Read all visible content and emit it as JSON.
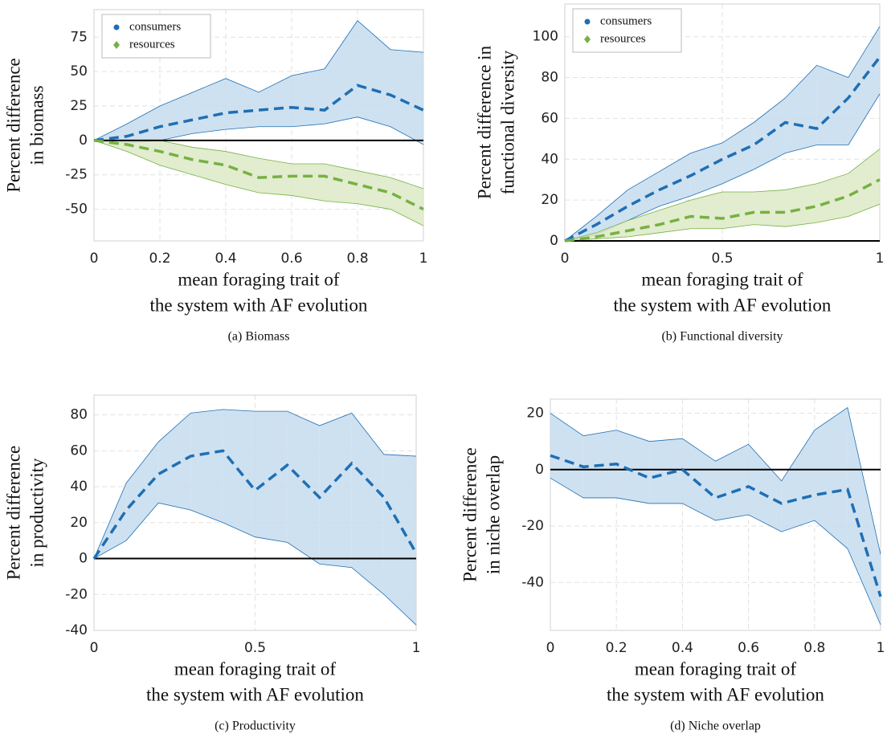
{
  "chart_data": [
    {
      "type": "line",
      "caption": "(a) Biomass",
      "ylabel": [
        "Percent difference",
        "in biomass"
      ],
      "xlabel": [
        "mean foraging trait of",
        "the system with AF evolution"
      ],
      "x": [
        0,
        0.1,
        0.2,
        0.3,
        0.4,
        0.5,
        0.6,
        0.7,
        0.8,
        0.9,
        1
      ],
      "xlim": [
        0,
        1
      ],
      "xticks": [
        0,
        0.2,
        0.4,
        0.6,
        0.8,
        1
      ],
      "ylim": [
        -73,
        95
      ],
      "yticks": [
        -50,
        -25,
        0,
        25,
        50,
        75
      ],
      "grid": true,
      "hline": 0,
      "legend": "upper left",
      "series": [
        {
          "name": "consumers",
          "color": "#1f6fb4",
          "fill": "#c5dcef",
          "marker": "circle",
          "values": [
            0,
            3,
            10,
            15,
            20,
            22,
            24,
            22,
            40,
            33,
            22
          ],
          "upper": [
            0,
            12,
            25,
            35,
            45,
            35,
            47,
            52,
            87,
            66,
            64
          ],
          "lower": [
            0,
            -2,
            0,
            5,
            8,
            10,
            10,
            12,
            17,
            10,
            -3
          ]
        },
        {
          "name": "resources",
          "color": "#77b043",
          "fill": "#dceac6",
          "marker": "diamond",
          "values": [
            0,
            -3,
            -8,
            -14,
            -18,
            -27,
            -26,
            -26,
            -32,
            -38,
            -50
          ],
          "upper": [
            0,
            0,
            0,
            -5,
            -8,
            -13,
            -17,
            -17,
            -22,
            -27,
            -35
          ],
          "lower": [
            0,
            -8,
            -18,
            -25,
            -32,
            -38,
            -40,
            -44,
            -46,
            -50,
            -62
          ]
        }
      ]
    },
    {
      "type": "line",
      "caption": "(b) Functional diversity",
      "ylabel": [
        "Percent difference in",
        "functional diversity"
      ],
      "xlabel": [
        "mean foraging trait of",
        "the system with AF evolution"
      ],
      "x": [
        0,
        0.1,
        0.2,
        0.3,
        0.4,
        0.5,
        0.6,
        0.7,
        0.8,
        0.9,
        1
      ],
      "xlim": [
        0,
        1
      ],
      "xticks": [
        0,
        0.5,
        1
      ],
      "ylim": [
        0,
        116
      ],
      "yticks": [
        0,
        20,
        40,
        60,
        80,
        100
      ],
      "grid": true,
      "hline": 0,
      "legend": "upper left",
      "series": [
        {
          "name": "consumers",
          "color": "#1f6fb4",
          "fill": "#c5dcef",
          "marker": "circle",
          "values": [
            0,
            8,
            17,
            25,
            32,
            40,
            47,
            58,
            55,
            70,
            90
          ],
          "upper": [
            0,
            12,
            25,
            34,
            43,
            48,
            58,
            70,
            86,
            80,
            105
          ],
          "lower": [
            0,
            3,
            10,
            17,
            22,
            28,
            35,
            43,
            47,
            47,
            72
          ]
        },
        {
          "name": "resources",
          "color": "#77b043",
          "fill": "#dceac6",
          "marker": "diamond",
          "values": [
            0,
            2,
            5,
            8,
            12,
            11,
            14,
            14,
            17,
            22,
            30
          ],
          "upper": [
            0,
            4,
            10,
            15,
            20,
            24,
            24,
            25,
            28,
            33,
            45
          ],
          "lower": [
            0,
            1,
            2,
            4,
            6,
            6,
            8,
            7,
            9,
            12,
            18
          ]
        }
      ]
    },
    {
      "type": "line",
      "caption": "(c) Productivity",
      "ylabel": [
        "Percent difference",
        "in productivity"
      ],
      "xlabel": [
        "mean foraging trait of",
        "the system with AF evolution"
      ],
      "x": [
        0,
        0.1,
        0.2,
        0.3,
        0.4,
        0.5,
        0.6,
        0.7,
        0.8,
        0.9,
        1
      ],
      "xlim": [
        0,
        1
      ],
      "xticks": [
        0,
        0.5,
        1
      ],
      "ylim": [
        -40,
        91
      ],
      "yticks": [
        -40,
        -20,
        0,
        20,
        40,
        60,
        80
      ],
      "grid": true,
      "hline": 0,
      "series": [
        {
          "color": "#1f6fb4",
          "fill": "#c5dcef",
          "values": [
            0,
            27,
            47,
            57,
            60,
            38,
            52,
            34,
            53,
            34,
            3
          ],
          "upper": [
            0,
            42,
            65,
            81,
            83,
            82,
            82,
            74,
            81,
            58,
            57
          ],
          "lower": [
            0,
            10,
            31,
            27,
            20,
            12,
            9,
            -3,
            -5,
            -20,
            -37
          ]
        }
      ]
    },
    {
      "type": "line",
      "caption": "(d) Niche overlap",
      "ylabel": [
        "Percent difference",
        "in niche overlap"
      ],
      "xlabel": [
        "mean foraging trait of",
        "the system with AF evolution"
      ],
      "x": [
        0,
        0.1,
        0.2,
        0.3,
        0.4,
        0.5,
        0.6,
        0.7,
        0.8,
        0.9,
        1
      ],
      "xlim": [
        0,
        1
      ],
      "xticks": [
        0,
        0.2,
        0.4,
        0.6,
        0.8,
        1
      ],
      "ylim": [
        -57,
        25
      ],
      "yticks": [
        -40,
        -20,
        0,
        20
      ],
      "grid": true,
      "hline": 0,
      "series": [
        {
          "color": "#1f6fb4",
          "fill": "#c5dcef",
          "values": [
            5,
            1,
            2,
            -3,
            0,
            -10,
            -6,
            -12,
            -9,
            -7,
            -45
          ],
          "upper": [
            20,
            12,
            14,
            10,
            11,
            3,
            9,
            -4,
            14,
            22,
            -30
          ],
          "lower": [
            -3,
            -10,
            -10,
            -12,
            -12,
            -18,
            -16,
            -22,
            -18,
            -28,
            -55
          ]
        }
      ]
    }
  ]
}
